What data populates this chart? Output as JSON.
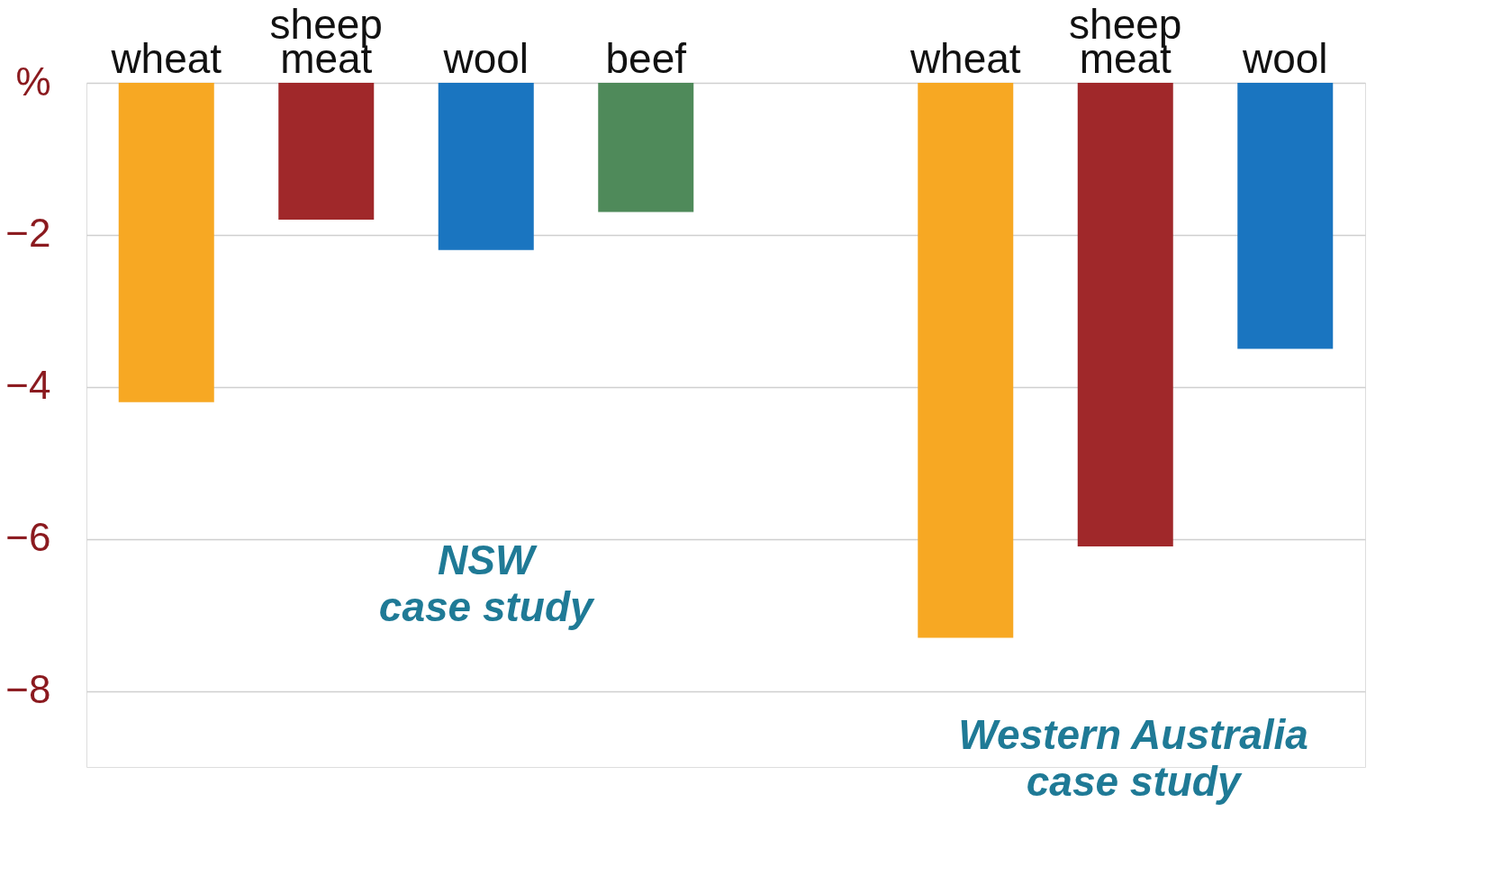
{
  "chart_data": {
    "type": "bar",
    "categories": [
      "wheat",
      "sheep meat",
      "wool",
      "beef",
      null,
      "wheat",
      "sheep meat",
      "wool"
    ],
    "values": [
      -4.2,
      -1.8,
      -2.2,
      -1.7,
      null,
      -7.3,
      -6.1,
      -3.5
    ],
    "colors": [
      "#f7a823",
      "#a0282a",
      "#1a75c0",
      "#4f8a5a",
      "#ffffff",
      "#f7a823",
      "#a0282a",
      "#1a75c0"
    ],
    "ylim": [
      -9,
      0
    ],
    "yticks": [
      {
        "value": 0,
        "label": "%"
      },
      {
        "value": -2,
        "label": "−2"
      },
      {
        "value": -4,
        "label": "−4"
      },
      {
        "value": -6,
        "label": "−6"
      },
      {
        "value": -8,
        "label": "−8"
      }
    ],
    "grid": "y",
    "annotations": [
      "NSW case study",
      "Western Australia case study"
    ]
  }
}
